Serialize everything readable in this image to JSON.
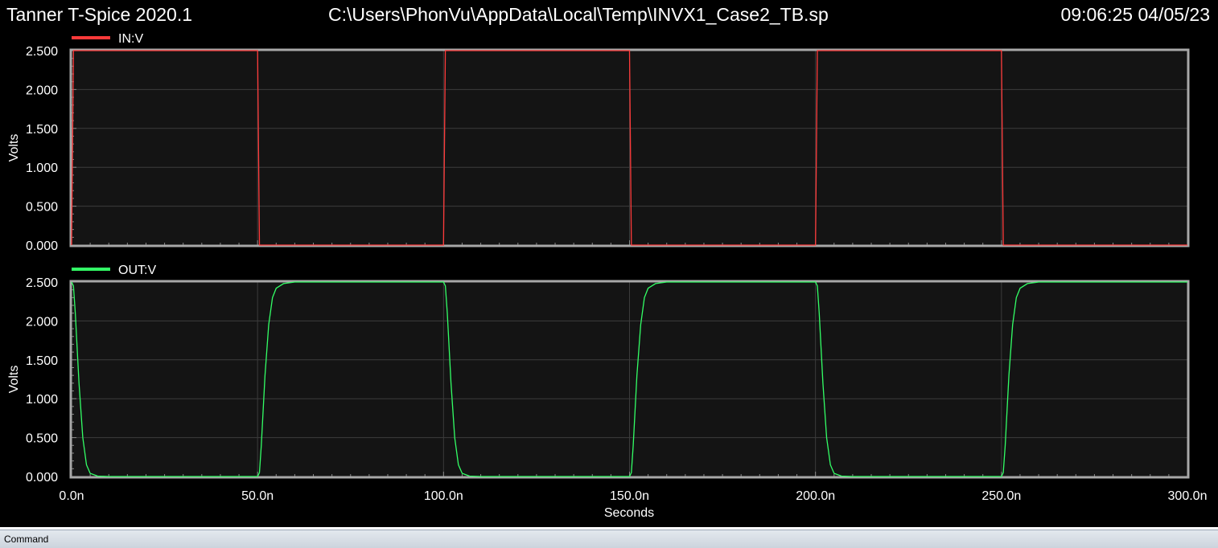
{
  "header": {
    "app_title": "Tanner T-Spice 2020.1",
    "file_path": "C:\\Users\\PhonVu\\AppData\\Local\\Temp\\INVX1_Case2_TB.sp",
    "timestamp": "09:06:25 04/05/23"
  },
  "command_bar": {
    "label": "Command"
  },
  "chart_data": {
    "type": "line",
    "xlabel": "Seconds",
    "x_ticks": [
      "0.0n",
      "50.0n",
      "100.0n",
      "150.0n",
      "200.0n",
      "250.0n",
      "300.0n"
    ],
    "xlim": [
      0,
      300
    ],
    "x_unit": "ns",
    "panels": [
      {
        "legend": "IN:V",
        "color": "#ff3a3a",
        "ylabel": "Volts",
        "ylim": [
          0,
          2.5
        ],
        "y_ticks": [
          "0.000",
          "0.500",
          "1.000",
          "1.500",
          "2.000",
          "2.500"
        ],
        "x": [
          0,
          0.5,
          50,
          50.5,
          100,
          100.5,
          150,
          150.5,
          200,
          200.5,
          250,
          250.5,
          300
        ],
        "y": [
          0,
          2.5,
          2.5,
          0,
          0,
          2.5,
          2.5,
          0,
          0,
          2.5,
          2.5,
          0,
          0
        ]
      },
      {
        "legend": "OUT:V",
        "color": "#33ff66",
        "ylabel": "Volts",
        "ylim": [
          0,
          2.5
        ],
        "y_ticks": [
          "0.000",
          "0.500",
          "1.000",
          "1.500",
          "2.000",
          "2.500"
        ],
        "x": [
          0,
          0.5,
          1,
          2,
          3,
          4,
          5,
          7,
          10,
          50,
          50.5,
          51,
          52,
          53,
          54,
          55,
          57,
          60,
          100,
          100.5,
          101,
          102,
          103,
          104,
          105,
          107,
          110,
          150,
          150.5,
          151,
          152,
          153,
          154,
          155,
          157,
          160,
          200,
          200.5,
          201,
          202,
          203,
          204,
          205,
          207,
          210,
          250,
          250.5,
          251,
          252,
          253,
          254,
          255,
          257,
          260,
          300
        ],
        "y": [
          2.5,
          2.45,
          2.1,
          1.2,
          0.5,
          0.15,
          0.04,
          0.005,
          0,
          0,
          0.05,
          0.4,
          1.3,
          1.95,
          2.3,
          2.42,
          2.48,
          2.5,
          2.5,
          2.45,
          2.1,
          1.2,
          0.5,
          0.15,
          0.04,
          0.005,
          0,
          0,
          0.05,
          0.4,
          1.3,
          1.95,
          2.3,
          2.42,
          2.48,
          2.5,
          2.5,
          2.45,
          2.1,
          1.2,
          0.5,
          0.15,
          0.04,
          0.005,
          0,
          0,
          0.05,
          0.4,
          1.3,
          1.95,
          2.3,
          2.42,
          2.48,
          2.5,
          2.5
        ]
      }
    ]
  }
}
